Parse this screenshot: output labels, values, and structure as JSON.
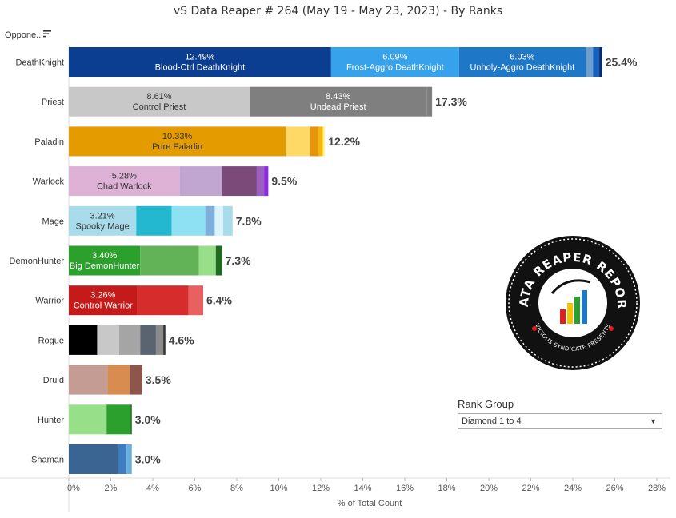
{
  "title": "vS Data Reaper #  264 (May 19 - May 23, 2023) - By Ranks",
  "opponent_header": "Oppone..",
  "rank_filter": {
    "title": "Rank Group",
    "selected": "Diamond 1 to 4"
  },
  "logo": {
    "text": "DATA REAPER REPORT",
    "subtext": "VICIOUS SYNDICATE PRESENTS"
  },
  "chart_data": {
    "type": "bar",
    "orientation": "horizontal",
    "stacked": true,
    "title": "vS Data Reaper #  264 (May 19 - May 23, 2023) - By Ranks",
    "xlabel": "% of Total Count",
    "ylabel": "Oppone..",
    "xlim": [
      0,
      28
    ],
    "x_ticks": [
      "0%",
      "2%",
      "4%",
      "6%",
      "8%",
      "10%",
      "12%",
      "14%",
      "16%",
      "18%",
      "20%",
      "22%",
      "24%",
      "26%",
      "28%"
    ],
    "grid": false,
    "legend": "none",
    "categories": [
      "DeathKnight",
      "Priest",
      "Paladin",
      "Warlock",
      "Mage",
      "DemonHunter",
      "Warrior",
      "Rogue",
      "Druid",
      "Hunter",
      "Shaman"
    ],
    "totals": [
      "25.4%",
      "17.3%",
      "12.2%",
      "9.5%",
      "7.8%",
      "7.3%",
      "6.4%",
      "4.6%",
      "3.5%",
      "3.0%",
      "3.0%"
    ],
    "rows": [
      {
        "class": "DeathKnight",
        "total": 25.4,
        "segments": [
          {
            "value": 12.49,
            "label": "12.49%",
            "name": "Blood-Ctrl DeathKnight",
            "color": "#0b3d91"
          },
          {
            "value": 6.09,
            "label": "6.09%",
            "name": "Frost-Aggro DeathKnight",
            "color": "#36a2eb"
          },
          {
            "value": 6.03,
            "label": "6.03%",
            "name": "Unholy-Aggro DeathKnight",
            "color": "#1f77c8"
          },
          {
            "value": 0.35,
            "color": "#6a9fd0"
          },
          {
            "value": 0.3,
            "color": "#1560bd"
          },
          {
            "value": 0.14,
            "color": "#0a2a6b"
          }
        ]
      },
      {
        "class": "Priest",
        "total": 17.3,
        "segments": [
          {
            "value": 8.61,
            "label": "8.61%",
            "name": "Control Priest",
            "color": "#c8c8c8",
            "dark": true
          },
          {
            "value": 8.43,
            "label": "8.43%",
            "name": "Undead Priest",
            "color": "#7f7f7f"
          },
          {
            "value": 0.26,
            "color": "#7f7f7f"
          }
        ]
      },
      {
        "class": "Paladin",
        "total": 12.2,
        "segments": [
          {
            "value": 10.33,
            "label": "10.33%",
            "name": "Pure Paladin",
            "color": "#e39b00",
            "dark": true
          },
          {
            "value": 1.17,
            "color": "#ffd966"
          },
          {
            "value": 0.4,
            "color": "#e6950a"
          },
          {
            "value": 0.2,
            "color": "#f5b800"
          },
          {
            "value": 0.1,
            "color": "#fff3a0"
          }
        ]
      },
      {
        "class": "Warlock",
        "total": 9.5,
        "segments": [
          {
            "value": 5.28,
            "label": "5.28%",
            "name": "Chad Warlock",
            "color": "#deb1d6",
            "dark": true
          },
          {
            "value": 2.02,
            "color": "#c2a6d2"
          },
          {
            "value": 1.65,
            "color": "#7b4a78"
          },
          {
            "value": 0.35,
            "color": "#9b5fc0"
          },
          {
            "value": 0.2,
            "color": "#8a2be2"
          }
        ]
      },
      {
        "class": "Mage",
        "total": 7.8,
        "segments": [
          {
            "value": 3.21,
            "label": "3.21%",
            "name": "Spooky Mage",
            "color": "#a8dcea",
            "dark": true
          },
          {
            "value": 1.69,
            "color": "#24b8d0"
          },
          {
            "value": 1.6,
            "color": "#8ee1f2"
          },
          {
            "value": 0.45,
            "color": "#7eaedc"
          },
          {
            "value": 0.4,
            "color": "#d9f5fb"
          },
          {
            "value": 0.45,
            "color": "#a8dcea"
          }
        ]
      },
      {
        "class": "DemonHunter",
        "total": 7.3,
        "segments": [
          {
            "value": 3.4,
            "label": "3.40%",
            "name": "Big DemonHunter",
            "color": "#2ca02c"
          },
          {
            "value": 2.8,
            "color": "#62b357"
          },
          {
            "value": 0.8,
            "color": "#98df8a"
          },
          {
            "value": 0.3,
            "color": "#1f6b1f"
          }
        ]
      },
      {
        "class": "Warrior",
        "total": 6.4,
        "segments": [
          {
            "value": 3.26,
            "label": "3.26%",
            "name": "Control Warrior",
            "color": "#c41a1a"
          },
          {
            "value": 2.44,
            "color": "#d62c2c"
          },
          {
            "value": 0.7,
            "color": "#e86060"
          }
        ]
      },
      {
        "class": "Rogue",
        "total": 4.6,
        "segments": [
          {
            "value": 1.35,
            "color": "#000000"
          },
          {
            "value": 1.05,
            "color": "#c8c8c8"
          },
          {
            "value": 1.0,
            "color": "#a5a5a5"
          },
          {
            "value": 0.75,
            "color": "#5a6470"
          },
          {
            "value": 0.35,
            "color": "#8c8c8c"
          },
          {
            "value": 0.1,
            "color": "#333333"
          }
        ]
      },
      {
        "class": "Druid",
        "total": 3.5,
        "segments": [
          {
            "value": 1.85,
            "color": "#c49c94"
          },
          {
            "value": 1.05,
            "color": "#d98c4f"
          },
          {
            "value": 0.6,
            "color": "#8c564b"
          }
        ]
      },
      {
        "class": "Hunter",
        "total": 3.0,
        "segments": [
          {
            "value": 1.8,
            "color": "#98df8a"
          },
          {
            "value": 1.15,
            "color": "#2ca02c"
          },
          {
            "value": 0.05,
            "color": "#1a5c1a"
          }
        ]
      },
      {
        "class": "Shaman",
        "total": 3.0,
        "segments": [
          {
            "value": 2.35,
            "color": "#3a6592"
          },
          {
            "value": 0.4,
            "color": "#3d7cc0"
          },
          {
            "value": 0.25,
            "color": "#6aaedc"
          }
        ]
      }
    ]
  }
}
